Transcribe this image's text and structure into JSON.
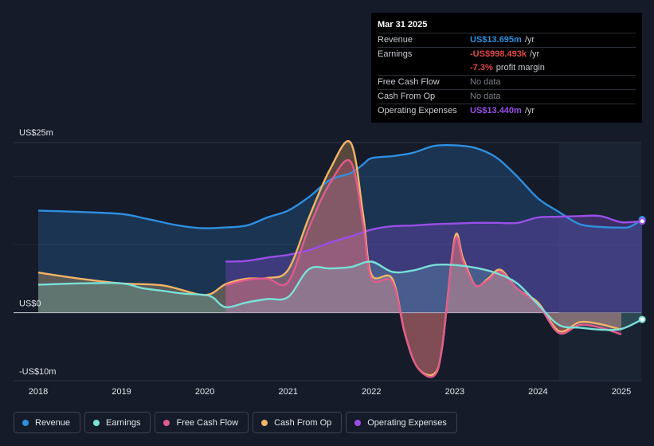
{
  "chart_data": {
    "type": "area",
    "y_axis": {
      "top_label": "US$25m",
      "zero_label": "US$0",
      "bottom_label": "-US$10m",
      "ylim": [
        -10,
        25
      ]
    },
    "x_ticks": [
      "2018",
      "2019",
      "2020",
      "2021",
      "2022",
      "2023",
      "2024",
      "2025"
    ],
    "forecast_region_start": 2024.25,
    "series": [
      {
        "name": "Revenue",
        "color": "#2f8fe0",
        "points": [
          [
            2018.0,
            15.0
          ],
          [
            2018.5,
            14.8
          ],
          [
            2019.0,
            14.5
          ],
          [
            2019.3,
            13.8
          ],
          [
            2019.6,
            13.0
          ],
          [
            2019.8,
            12.6
          ],
          [
            2020.0,
            12.4
          ],
          [
            2020.2,
            12.5
          ],
          [
            2020.5,
            12.8
          ],
          [
            2020.75,
            14.0
          ],
          [
            2021.0,
            15.0
          ],
          [
            2021.25,
            17.0
          ],
          [
            2021.5,
            19.5
          ],
          [
            2021.75,
            20.5
          ],
          [
            2021.9,
            21.8
          ],
          [
            2022.0,
            22.7
          ],
          [
            2022.25,
            23.0
          ],
          [
            2022.5,
            23.5
          ],
          [
            2022.75,
            24.5
          ],
          [
            2023.0,
            24.6
          ],
          [
            2023.25,
            24.2
          ],
          [
            2023.5,
            22.8
          ],
          [
            2023.75,
            20.0
          ],
          [
            2024.0,
            16.8
          ],
          [
            2024.25,
            14.8
          ],
          [
            2024.5,
            13.0
          ],
          [
            2024.75,
            12.6
          ],
          [
            2025.0,
            12.5
          ],
          [
            2025.1,
            12.6
          ],
          [
            2025.25,
            13.7
          ]
        ]
      },
      {
        "name": "Earnings",
        "color": "#7ae0d8",
        "points": [
          [
            2018.0,
            4.1
          ],
          [
            2018.5,
            4.3
          ],
          [
            2019.0,
            4.3
          ],
          [
            2019.25,
            3.6
          ],
          [
            2019.5,
            3.2
          ],
          [
            2019.75,
            2.8
          ],
          [
            2020.0,
            2.6
          ],
          [
            2020.1,
            2.2
          ],
          [
            2020.25,
            0.8
          ],
          [
            2020.5,
            1.5
          ],
          [
            2020.75,
            2.0
          ],
          [
            2021.0,
            2.3
          ],
          [
            2021.25,
            6.4
          ],
          [
            2021.5,
            6.5
          ],
          [
            2021.75,
            6.7
          ],
          [
            2022.0,
            7.5
          ],
          [
            2022.25,
            6.0
          ],
          [
            2022.5,
            6.2
          ],
          [
            2022.75,
            7.0
          ],
          [
            2023.0,
            7.0
          ],
          [
            2023.25,
            6.6
          ],
          [
            2023.5,
            5.8
          ],
          [
            2023.75,
            4.3
          ],
          [
            2024.0,
            1.2
          ],
          [
            2024.25,
            -1.8
          ],
          [
            2024.5,
            -2.2
          ],
          [
            2024.75,
            -2.5
          ],
          [
            2025.0,
            -2.4
          ],
          [
            2025.25,
            -1.0
          ]
        ]
      },
      {
        "name": "Free Cash Flow",
        "color": "#e05a8e",
        "points": [
          [
            2020.25,
            4.0
          ],
          [
            2020.5,
            4.8
          ],
          [
            2020.75,
            5.0
          ],
          [
            2021.0,
            4.5
          ],
          [
            2021.25,
            12.5
          ],
          [
            2021.5,
            19.0
          ],
          [
            2021.75,
            22.2
          ],
          [
            2021.9,
            13.0
          ],
          [
            2022.0,
            5.0
          ],
          [
            2022.25,
            4.5
          ],
          [
            2022.4,
            -3.0
          ],
          [
            2022.55,
            -8.0
          ],
          [
            2022.75,
            -9.3
          ],
          [
            2022.85,
            -5.0
          ],
          [
            2023.0,
            10.5
          ],
          [
            2023.1,
            7.5
          ],
          [
            2023.25,
            4.0
          ],
          [
            2023.4,
            4.8
          ],
          [
            2023.55,
            6.0
          ],
          [
            2023.75,
            3.5
          ],
          [
            2024.0,
            1.2
          ],
          [
            2024.25,
            -3.0
          ],
          [
            2024.5,
            -1.8
          ],
          [
            2024.75,
            -2.2
          ],
          [
            2025.0,
            -3.2
          ]
        ]
      },
      {
        "name": "Cash From Op",
        "color": "#f2b467",
        "points": [
          [
            2018.0,
            5.9
          ],
          [
            2018.5,
            5.0
          ],
          [
            2019.0,
            4.3
          ],
          [
            2019.5,
            4.0
          ],
          [
            2020.0,
            2.6
          ],
          [
            2020.25,
            4.2
          ],
          [
            2020.5,
            5.0
          ],
          [
            2020.75,
            5.1
          ],
          [
            2021.0,
            6.3
          ],
          [
            2021.25,
            14.0
          ],
          [
            2021.5,
            21.0
          ],
          [
            2021.75,
            25.0
          ],
          [
            2021.9,
            14.5
          ],
          [
            2022.0,
            5.6
          ],
          [
            2022.25,
            5.0
          ],
          [
            2022.4,
            -3.0
          ],
          [
            2022.55,
            -8.0
          ],
          [
            2022.75,
            -9.0
          ],
          [
            2022.85,
            -5.0
          ],
          [
            2023.0,
            11.0
          ],
          [
            2023.1,
            8.0
          ],
          [
            2023.25,
            4.0
          ],
          [
            2023.4,
            5.0
          ],
          [
            2023.55,
            6.3
          ],
          [
            2023.75,
            3.5
          ],
          [
            2024.0,
            1.5
          ],
          [
            2024.25,
            -2.7
          ],
          [
            2024.5,
            -1.4
          ],
          [
            2024.75,
            -1.7
          ],
          [
            2025.0,
            -2.5
          ]
        ]
      },
      {
        "name": "Operating Expenses",
        "color": "#9a4ee8",
        "points": [
          [
            2020.25,
            7.5
          ],
          [
            2020.5,
            7.6
          ],
          [
            2020.75,
            8.1
          ],
          [
            2021.0,
            8.5
          ],
          [
            2021.25,
            9.2
          ],
          [
            2021.5,
            10.3
          ],
          [
            2021.75,
            11.2
          ],
          [
            2022.0,
            12.2
          ],
          [
            2022.25,
            12.7
          ],
          [
            2022.5,
            12.8
          ],
          [
            2022.75,
            13.0
          ],
          [
            2023.0,
            13.1
          ],
          [
            2023.25,
            13.2
          ],
          [
            2023.5,
            13.2
          ],
          [
            2023.75,
            13.2
          ],
          [
            2024.0,
            14.0
          ],
          [
            2024.25,
            14.1
          ],
          [
            2024.5,
            14.2
          ],
          [
            2024.75,
            14.2
          ],
          [
            2025.0,
            13.3
          ],
          [
            2025.25,
            13.44
          ]
        ]
      }
    ]
  },
  "tooltip": {
    "date": "Mar 31 2025",
    "rows": [
      {
        "key": "Revenue",
        "value": "US$13.695m",
        "unit": "/yr",
        "color": "#2f8fe0"
      },
      {
        "key": "Earnings",
        "value": "-US$998.493k",
        "unit": "/yr",
        "color": "#e04848"
      },
      {
        "key": "",
        "value": "-7.3%",
        "unit": "profit margin",
        "color": "#e04848"
      },
      {
        "key": "Free Cash Flow",
        "value": "No data",
        "unit": "",
        "color": "#7b8089"
      },
      {
        "key": "Cash From Op",
        "value": "No data",
        "unit": "",
        "color": "#7b8089"
      },
      {
        "key": "Operating Expenses",
        "value": "US$13.440m",
        "unit": "/yr",
        "color": "#9a4ee8"
      }
    ]
  },
  "legend": [
    {
      "label": "Revenue",
      "color": "#2f8fe0"
    },
    {
      "label": "Earnings",
      "color": "#7ae0d8"
    },
    {
      "label": "Free Cash Flow",
      "color": "#e05a8e"
    },
    {
      "label": "Cash From Op",
      "color": "#f2b467"
    },
    {
      "label": "Operating Expenses",
      "color": "#9a4ee8"
    }
  ]
}
